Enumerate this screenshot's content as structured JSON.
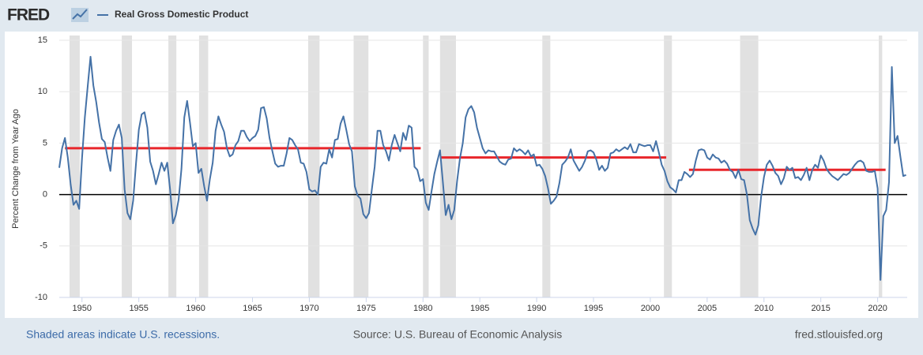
{
  "chart_data": {
    "type": "line",
    "logo": "FRED",
    "ylabel": "Percent Change from Year Ago",
    "footer_left": "Shaded areas indicate U.S. recessions.",
    "footer_center": "Source: U.S. Bureau of Economic Analysis",
    "footer_right": "fred.stlouisfed.org",
    "xlim": [
      1948,
      2022.6
    ],
    "xticks": [
      1950,
      1955,
      1960,
      1965,
      1970,
      1975,
      1980,
      1985,
      1990,
      1995,
      2000,
      2005,
      2010,
      2015,
      2020
    ],
    "ylim": [
      -10,
      15
    ],
    "yticks": [
      -10,
      -5,
      0,
      5,
      10,
      15
    ],
    "grid": true,
    "recession_color": "#e1e1e1",
    "recessions": [
      [
        1948.9,
        1949.8
      ],
      [
        1953.5,
        1954.4
      ],
      [
        1957.6,
        1958.3
      ],
      [
        1960.3,
        1961.1
      ],
      [
        1969.9,
        1970.9
      ],
      [
        1973.9,
        1975.2
      ],
      [
        1980.0,
        1980.5
      ],
      [
        1981.5,
        1982.9
      ],
      [
        1990.5,
        1991.2
      ],
      [
        2001.2,
        2001.9
      ],
      [
        2007.9,
        2009.5
      ],
      [
        2020.1,
        2020.4
      ]
    ],
    "reference_lines": [
      {
        "x": [
          1948.5,
          1979.8
        ],
        "value": 4.5,
        "color": "#e8262b"
      },
      {
        "x": [
          1981.5,
          2001.4
        ],
        "value": 3.6,
        "color": "#e8262b"
      },
      {
        "x": [
          2003.4,
          2020.7
        ],
        "value": 2.4,
        "color": "#e8262b"
      }
    ],
    "series": [
      {
        "name": "Real Gross Domestic Product",
        "color": "#4572a7",
        "x": [
          1948,
          1948.25,
          1948.5,
          1948.75,
          1949,
          1949.25,
          1949.5,
          1949.75,
          1950,
          1950.25,
          1950.5,
          1950.75,
          1951,
          1951.25,
          1951.5,
          1951.75,
          1952,
          1952.25,
          1952.5,
          1952.75,
          1953,
          1953.25,
          1953.5,
          1953.75,
          1954,
          1954.25,
          1954.5,
          1954.75,
          1955,
          1955.25,
          1955.5,
          1955.75,
          1956,
          1956.25,
          1956.5,
          1956.75,
          1957,
          1957.25,
          1957.5,
          1957.75,
          1958,
          1958.25,
          1958.5,
          1958.75,
          1959,
          1959.25,
          1959.5,
          1959.75,
          1960,
          1960.25,
          1960.5,
          1960.75,
          1961,
          1961.25,
          1961.5,
          1961.75,
          1962,
          1962.25,
          1962.5,
          1962.75,
          1963,
          1963.25,
          1963.5,
          1963.75,
          1964,
          1964.25,
          1964.5,
          1964.75,
          1965,
          1965.25,
          1965.5,
          1965.75,
          1966,
          1966.25,
          1966.5,
          1966.75,
          1967,
          1967.25,
          1967.5,
          1967.75,
          1968,
          1968.25,
          1968.5,
          1968.75,
          1969,
          1969.25,
          1969.5,
          1969.75,
          1970,
          1970.25,
          1970.5,
          1970.75,
          1971,
          1971.25,
          1971.5,
          1971.75,
          1972,
          1972.25,
          1972.5,
          1972.75,
          1973,
          1973.25,
          1973.5,
          1973.75,
          1974,
          1974.25,
          1974.5,
          1974.75,
          1975,
          1975.25,
          1975.5,
          1975.75,
          1976,
          1976.25,
          1976.5,
          1976.75,
          1977,
          1977.25,
          1977.5,
          1977.75,
          1978,
          1978.25,
          1978.5,
          1978.75,
          1979,
          1979.25,
          1979.5,
          1979.75,
          1980,
          1980.25,
          1980.5,
          1980.75,
          1981,
          1981.25,
          1981.5,
          1981.75,
          1982,
          1982.25,
          1982.5,
          1982.75,
          1983,
          1983.25,
          1983.5,
          1983.75,
          1984,
          1984.25,
          1984.5,
          1984.75,
          1985,
          1985.25,
          1985.5,
          1985.75,
          1986,
          1986.25,
          1986.5,
          1986.75,
          1987,
          1987.25,
          1987.5,
          1987.75,
          1988,
          1988.25,
          1988.5,
          1988.75,
          1989,
          1989.25,
          1989.5,
          1989.75,
          1990,
          1990.25,
          1990.5,
          1990.75,
          1991,
          1991.25,
          1991.5,
          1991.75,
          1992,
          1992.25,
          1992.5,
          1992.75,
          1993,
          1993.25,
          1993.5,
          1993.75,
          1994,
          1994.25,
          1994.5,
          1994.75,
          1995,
          1995.25,
          1995.5,
          1995.75,
          1996,
          1996.25,
          1996.5,
          1996.75,
          1997,
          1997.25,
          1997.5,
          1997.75,
          1998,
          1998.25,
          1998.5,
          1998.75,
          1999,
          1999.25,
          1999.5,
          1999.75,
          2000,
          2000.25,
          2000.5,
          2000.75,
          2001,
          2001.25,
          2001.5,
          2001.75,
          2002,
          2002.25,
          2002.5,
          2002.75,
          2003,
          2003.25,
          2003.5,
          2003.75,
          2004,
          2004.25,
          2004.5,
          2004.75,
          2005,
          2005.25,
          2005.5,
          2005.75,
          2006,
          2006.25,
          2006.5,
          2006.75,
          2007,
          2007.25,
          2007.5,
          2007.75,
          2008,
          2008.25,
          2008.5,
          2008.75,
          2009,
          2009.25,
          2009.5,
          2009.75,
          2010,
          2010.25,
          2010.5,
          2010.75,
          2011,
          2011.25,
          2011.5,
          2011.75,
          2012,
          2012.25,
          2012.5,
          2012.75,
          2013,
          2013.25,
          2013.5,
          2013.75,
          2014,
          2014.25,
          2014.5,
          2014.75,
          2015,
          2015.25,
          2015.5,
          2015.75,
          2016,
          2016.25,
          2016.5,
          2016.75,
          2017,
          2017.25,
          2017.5,
          2017.75,
          2018,
          2018.25,
          2018.5,
          2018.75,
          2019,
          2019.25,
          2019.5,
          2019.75,
          2020,
          2020.25,
          2020.5,
          2020.75,
          2021,
          2021.25,
          2021.5,
          2021.75,
          2022,
          2022.25,
          2022.5
        ],
        "values": [
          2.6,
          4.5,
          5.5,
          3.6,
          1.0,
          -1.0,
          -0.6,
          -1.4,
          3.5,
          7.5,
          10.5,
          13.4,
          10.6,
          9.0,
          7.0,
          5.4,
          5.1,
          3.6,
          2.3,
          5.3,
          6.2,
          6.8,
          5.5,
          0.5,
          -1.8,
          -2.4,
          -0.6,
          3.0,
          6.3,
          7.8,
          8.0,
          6.5,
          3.2,
          2.3,
          1.0,
          2.0,
          3.1,
          2.3,
          3.1,
          0.5,
          -2.8,
          -2.0,
          -0.5,
          2.5,
          7.5,
          9.1,
          7.0,
          4.7,
          5.0,
          2.1,
          2.5,
          0.8,
          -0.6,
          1.5,
          3.1,
          6.2,
          7.6,
          6.8,
          6.1,
          4.5,
          3.7,
          3.9,
          4.8,
          5.2,
          6.2,
          6.2,
          5.6,
          5.2,
          5.5,
          5.7,
          6.3,
          8.4,
          8.5,
          7.4,
          5.5,
          4.2,
          3.0,
          2.7,
          2.8,
          2.8,
          4.0,
          5.5,
          5.3,
          4.8,
          4.4,
          3.1,
          3.0,
          2.2,
          0.5,
          0.3,
          0.4,
          0.0,
          2.7,
          3.1,
          3.0,
          4.4,
          3.6,
          5.3,
          5.4,
          6.9,
          7.6,
          6.3,
          4.9,
          4.2,
          0.8,
          -0.1,
          -0.4,
          -1.9,
          -2.3,
          -1.8,
          0.5,
          2.7,
          6.2,
          6.2,
          4.8,
          4.2,
          3.3,
          4.8,
          5.8,
          5.0,
          4.2,
          6.0,
          5.3,
          6.7,
          6.5,
          2.7,
          2.4,
          1.3,
          1.5,
          -0.8,
          -1.5,
          0.3,
          2.0,
          3.2,
          4.3,
          1.2,
          -2.0,
          -1.0,
          -2.4,
          -1.5,
          1.3,
          3.5,
          5.0,
          7.5,
          8.3,
          8.6,
          8.0,
          6.5,
          5.5,
          4.5,
          4.0,
          4.3,
          4.2,
          4.2,
          3.7,
          3.2,
          3.0,
          2.9,
          3.4,
          3.5,
          4.5,
          4.2,
          4.4,
          4.2,
          3.9,
          4.3,
          3.7,
          3.9,
          2.8,
          2.9,
          2.5,
          1.8,
          0.6,
          -0.9,
          -0.6,
          -0.2,
          1.1,
          2.9,
          3.2,
          3.6,
          4.4,
          3.3,
          2.8,
          2.3,
          2.7,
          3.3,
          4.2,
          4.3,
          4.1,
          3.4,
          2.4,
          2.8,
          2.3,
          2.6,
          4.0,
          4.1,
          4.4,
          4.2,
          4.4,
          4.6,
          4.4,
          4.9,
          4.1,
          4.1,
          4.9,
          4.8,
          4.7,
          4.8,
          4.8,
          4.2,
          5.2,
          4.1,
          2.9,
          2.3,
          1.3,
          0.7,
          0.5,
          0.2,
          1.4,
          1.4,
          2.2,
          2.0,
          1.7,
          2.0,
          3.3,
          4.3,
          4.4,
          4.3,
          3.6,
          3.4,
          3.9,
          3.6,
          3.5,
          3.1,
          3.3,
          3.0,
          2.4,
          2.2,
          1.6,
          2.4,
          1.5,
          1.4,
          0.0,
          -2.5,
          -3.3,
          -3.9,
          -3.0,
          -0.2,
          1.7,
          2.9,
          3.3,
          2.8,
          2.1,
          1.8,
          1.0,
          1.6,
          2.7,
          2.4,
          2.6,
          1.6,
          1.7,
          1.4,
          1.9,
          2.6,
          1.4,
          2.4,
          2.9,
          2.6,
          3.8,
          3.3,
          2.5,
          2.1,
          1.8,
          1.6,
          1.4,
          1.7,
          2.0,
          1.9,
          2.1,
          2.5,
          2.9,
          3.2,
          3.3,
          3.1,
          2.3,
          2.2,
          2.2,
          2.3,
          0.6,
          -8.3,
          -2.1,
          -1.5,
          1.2,
          12.4,
          5.0,
          5.7,
          3.7,
          1.8,
          1.9
        ]
      }
    ]
  }
}
